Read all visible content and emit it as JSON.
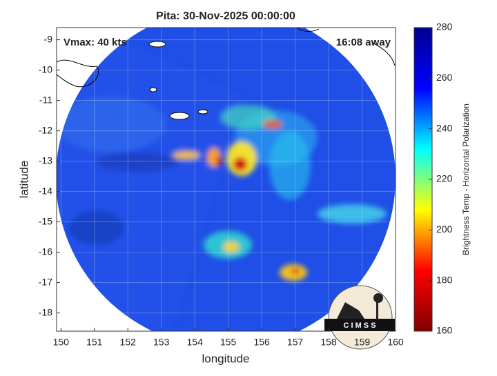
{
  "chart_data": {
    "type": "image",
    "title": "Pita: 30-Nov-2025 00:00:00",
    "xlabel": "longitude",
    "ylabel": "latitude",
    "xlim": [
      149.87,
      160
    ],
    "ylim": [
      -18.6,
      -8.6
    ],
    "xticks": [
      150,
      151,
      152,
      153,
      154,
      155,
      156,
      157,
      158,
      159,
      160
    ],
    "yticks": [
      -9,
      -10,
      -11,
      -12,
      -13,
      -14,
      -15,
      -16,
      -17,
      -18
    ],
    "grid": true,
    "annotations": [
      "Vmax: 40 kts",
      "16:08 away"
    ],
    "logo_text": "C I M S S",
    "colorbar": {
      "label": "Brightness Temp - Horizontal Polarization",
      "clim": [
        160,
        280
      ],
      "ticks": [
        160,
        180,
        200,
        220,
        240,
        260,
        280
      ],
      "colors": [
        "#800000",
        "#ff0000",
        "#ffff00",
        "#00ffff",
        "#0000ff",
        "#00008f"
      ]
    }
  }
}
